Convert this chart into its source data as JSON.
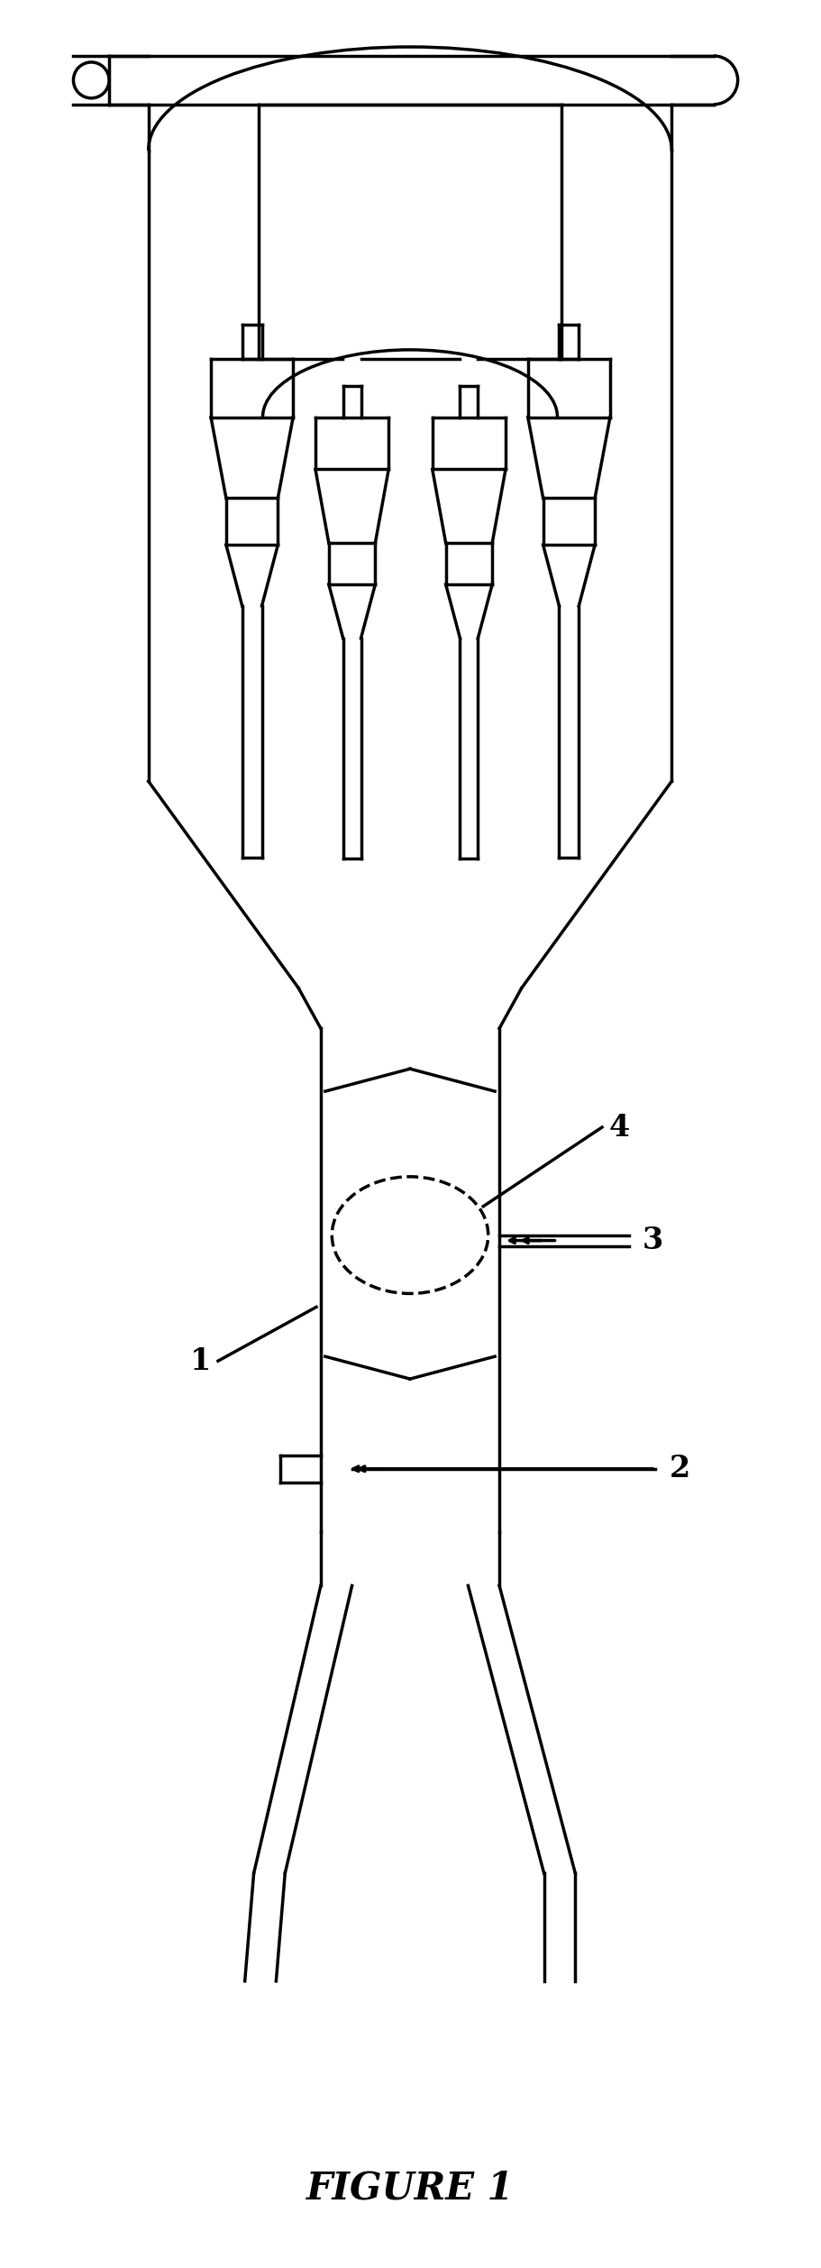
{
  "title": "FIGURE 1",
  "background_color": "#ffffff",
  "line_color": "#000000",
  "line_width": 2.5,
  "fig_width": 9.11,
  "fig_height": 25.15
}
